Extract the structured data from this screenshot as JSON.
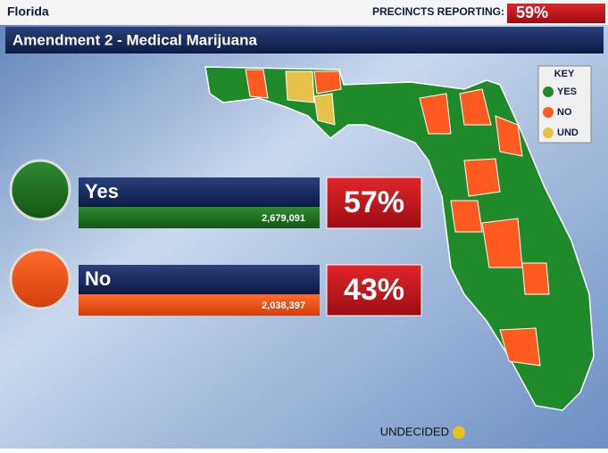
{
  "header": {
    "state": "Florida",
    "precincts_label": "PRECINCTS REPORTING:",
    "precincts_value": "59%"
  },
  "title": "Amendment 2 - Medical Marijuana",
  "results": [
    {
      "label": "Yes",
      "votes": "2,679,091",
      "percent": "57%"
    },
    {
      "label": "No",
      "votes": "2,038,397",
      "percent": "43%"
    }
  ],
  "key": {
    "title": "KEY",
    "items": [
      "YES",
      "NO",
      "UND"
    ]
  },
  "footer": "UNDECIDED"
}
